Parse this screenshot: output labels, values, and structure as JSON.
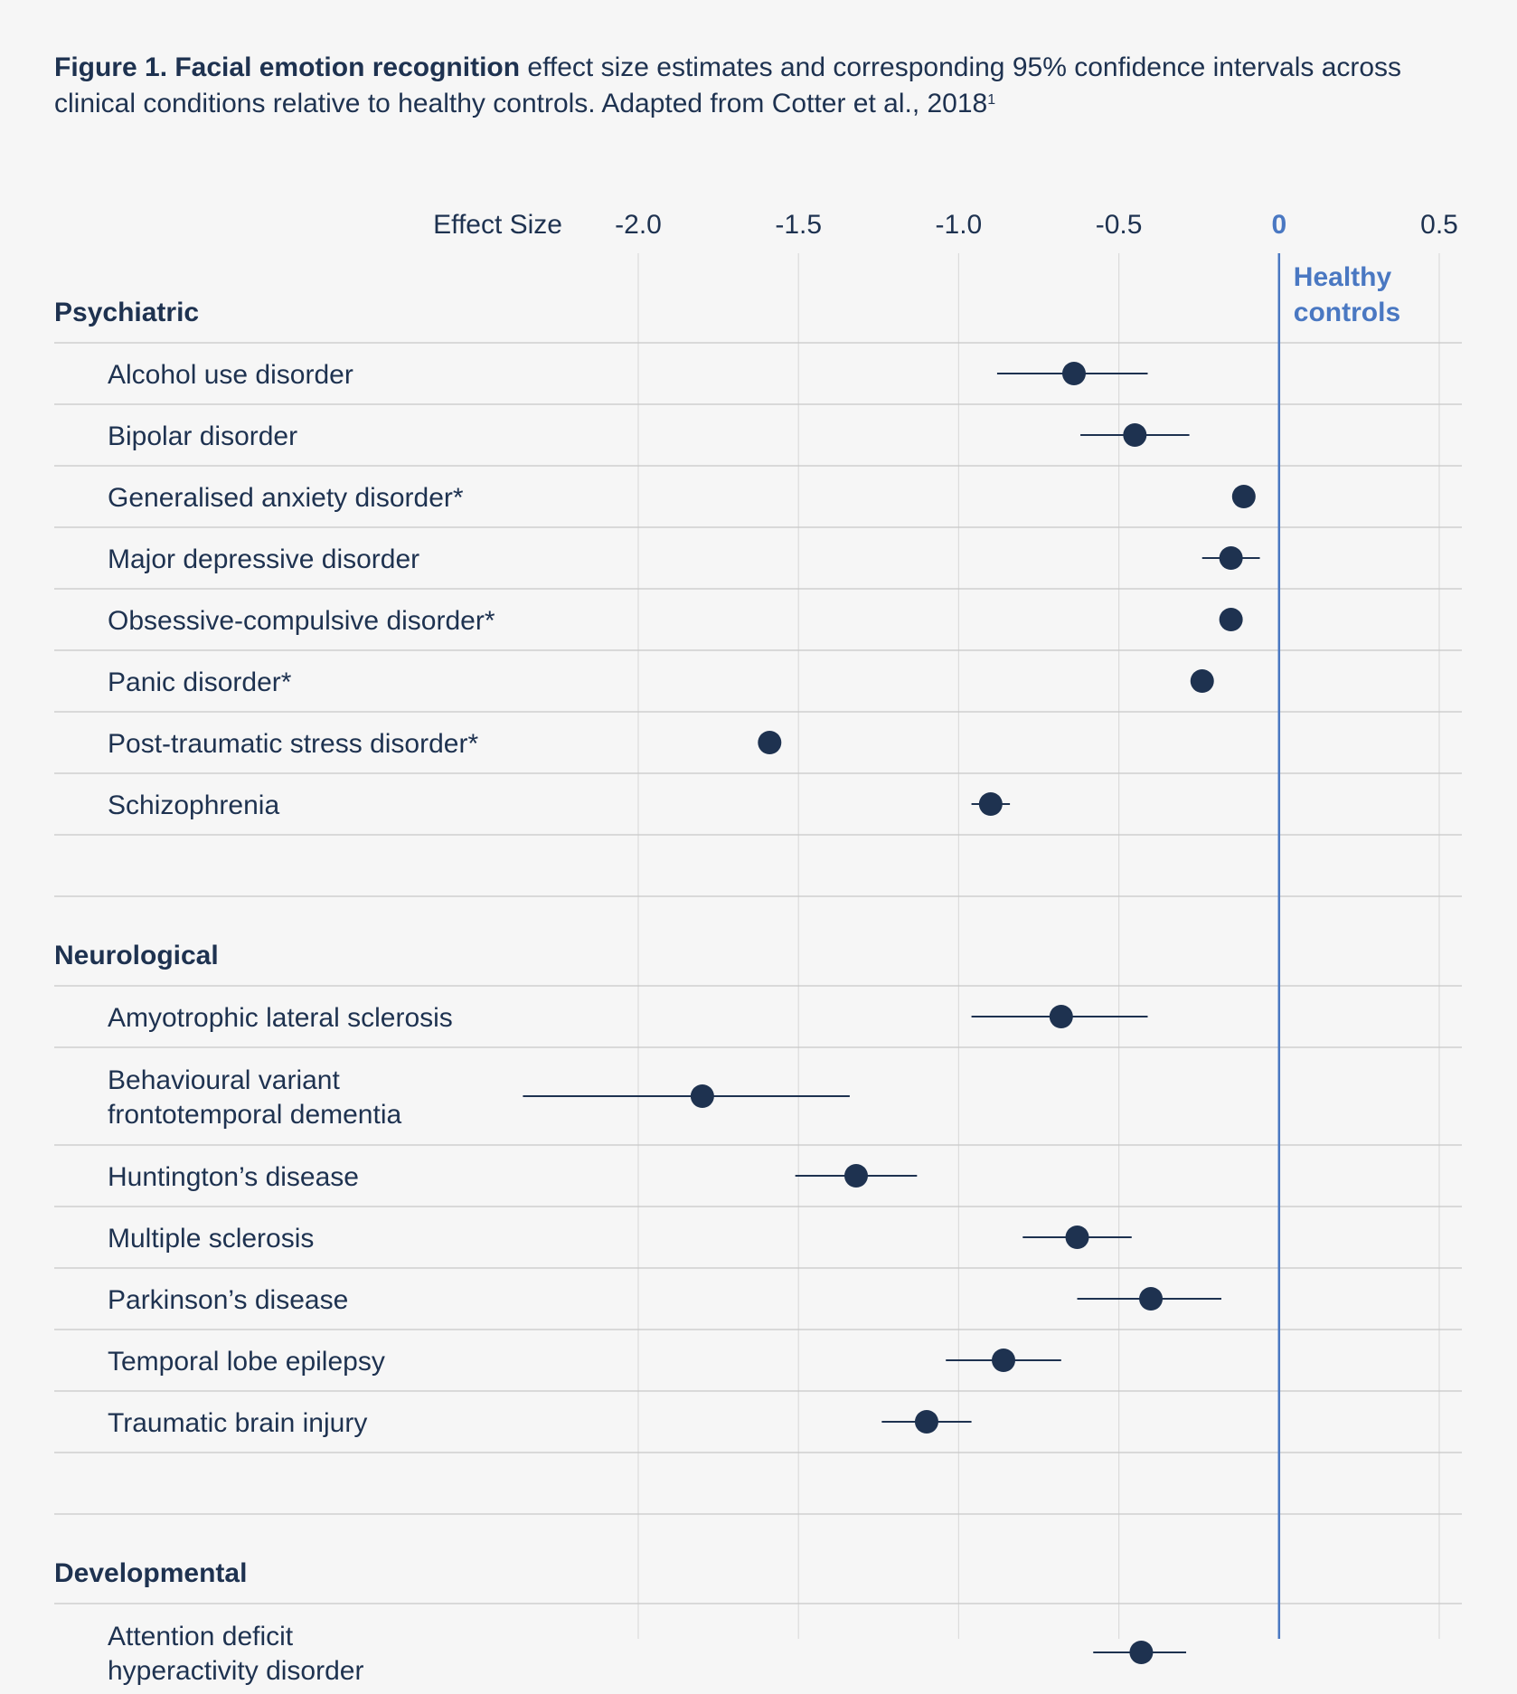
{
  "caption": {
    "bold": "Figure 1. Facial emotion recognition",
    "rest": " effect size estimates and corresponding 95% confidence intervals across clinical conditions relative to healthy controls. Adapted from Cotter et al., 2018",
    "sup": "1"
  },
  "colors": {
    "background": "#f6f6f6",
    "text": "#1e3250",
    "marker": "#1e3250",
    "reference_line": "#4a78c2",
    "grid": "#dcdcdc",
    "row_divider": "#c8c8c8"
  },
  "chart_data": {
    "type": "forest",
    "axis_title": "Effect Size",
    "xlim": [
      -2.0,
      0.5
    ],
    "ticks": [
      -2.0,
      -1.5,
      -1.0,
      -0.5,
      0,
      0.5
    ],
    "tick_labels": [
      "-2.0",
      "-1.5",
      "-1.0",
      "-0.5",
      "0",
      "0.5"
    ],
    "reference": {
      "value": 0,
      "label_line1": "Healthy",
      "label_line2": "controls"
    },
    "groups": [
      {
        "name": "Psychiatric",
        "items": [
          {
            "label": [
              "Alcohol use disorder"
            ],
            "estimate": -0.64,
            "ci": [
              -0.88,
              -0.41
            ]
          },
          {
            "label": [
              "Bipolar disorder"
            ],
            "estimate": -0.45,
            "ci": [
              -0.62,
              -0.28
            ]
          },
          {
            "label": [
              "Generalised anxiety disorder*"
            ],
            "estimate": -0.11,
            "ci": null
          },
          {
            "label": [
              "Major depressive disorder"
            ],
            "estimate": -0.15,
            "ci": [
              -0.24,
              -0.06
            ]
          },
          {
            "label": [
              "Obsessive-compulsive disorder*"
            ],
            "estimate": -0.15,
            "ci": null
          },
          {
            "label": [
              "Panic disorder*"
            ],
            "estimate": -0.24,
            "ci": null
          },
          {
            "label": [
              "Post-traumatic stress disorder*"
            ],
            "estimate": -1.59,
            "ci": null
          },
          {
            "label": [
              "Schizophrenia"
            ],
            "estimate": -0.9,
            "ci": [
              -0.96,
              -0.84
            ]
          }
        ]
      },
      {
        "name": "Neurological",
        "items": [
          {
            "label": [
              "Amyotrophic lateral sclerosis"
            ],
            "estimate": -0.68,
            "ci": [
              -0.96,
              -0.41
            ]
          },
          {
            "label": [
              "Behavioural variant",
              "frontotemporal dementia"
            ],
            "estimate": -1.8,
            "ci": [
              -2.36,
              -1.34
            ]
          },
          {
            "label": [
              "Huntington’s disease"
            ],
            "estimate": -1.32,
            "ci": [
              -1.51,
              -1.13
            ]
          },
          {
            "label": [
              "Multiple sclerosis"
            ],
            "estimate": -0.63,
            "ci": [
              -0.8,
              -0.46
            ]
          },
          {
            "label": [
              "Parkinson’s disease"
            ],
            "estimate": -0.4,
            "ci": [
              -0.63,
              -0.18
            ]
          },
          {
            "label": [
              "Temporal lobe epilepsy"
            ],
            "estimate": -0.86,
            "ci": [
              -1.04,
              -0.68
            ]
          },
          {
            "label": [
              "Traumatic brain injury"
            ],
            "estimate": -1.1,
            "ci": [
              -1.24,
              -0.96
            ]
          }
        ]
      },
      {
        "name": "Developmental",
        "items": [
          {
            "label": [
              "Attention deficit",
              "hyperactivity disorder"
            ],
            "estimate": -0.43,
            "ci": [
              -0.58,
              -0.29
            ]
          }
        ]
      }
    ]
  }
}
